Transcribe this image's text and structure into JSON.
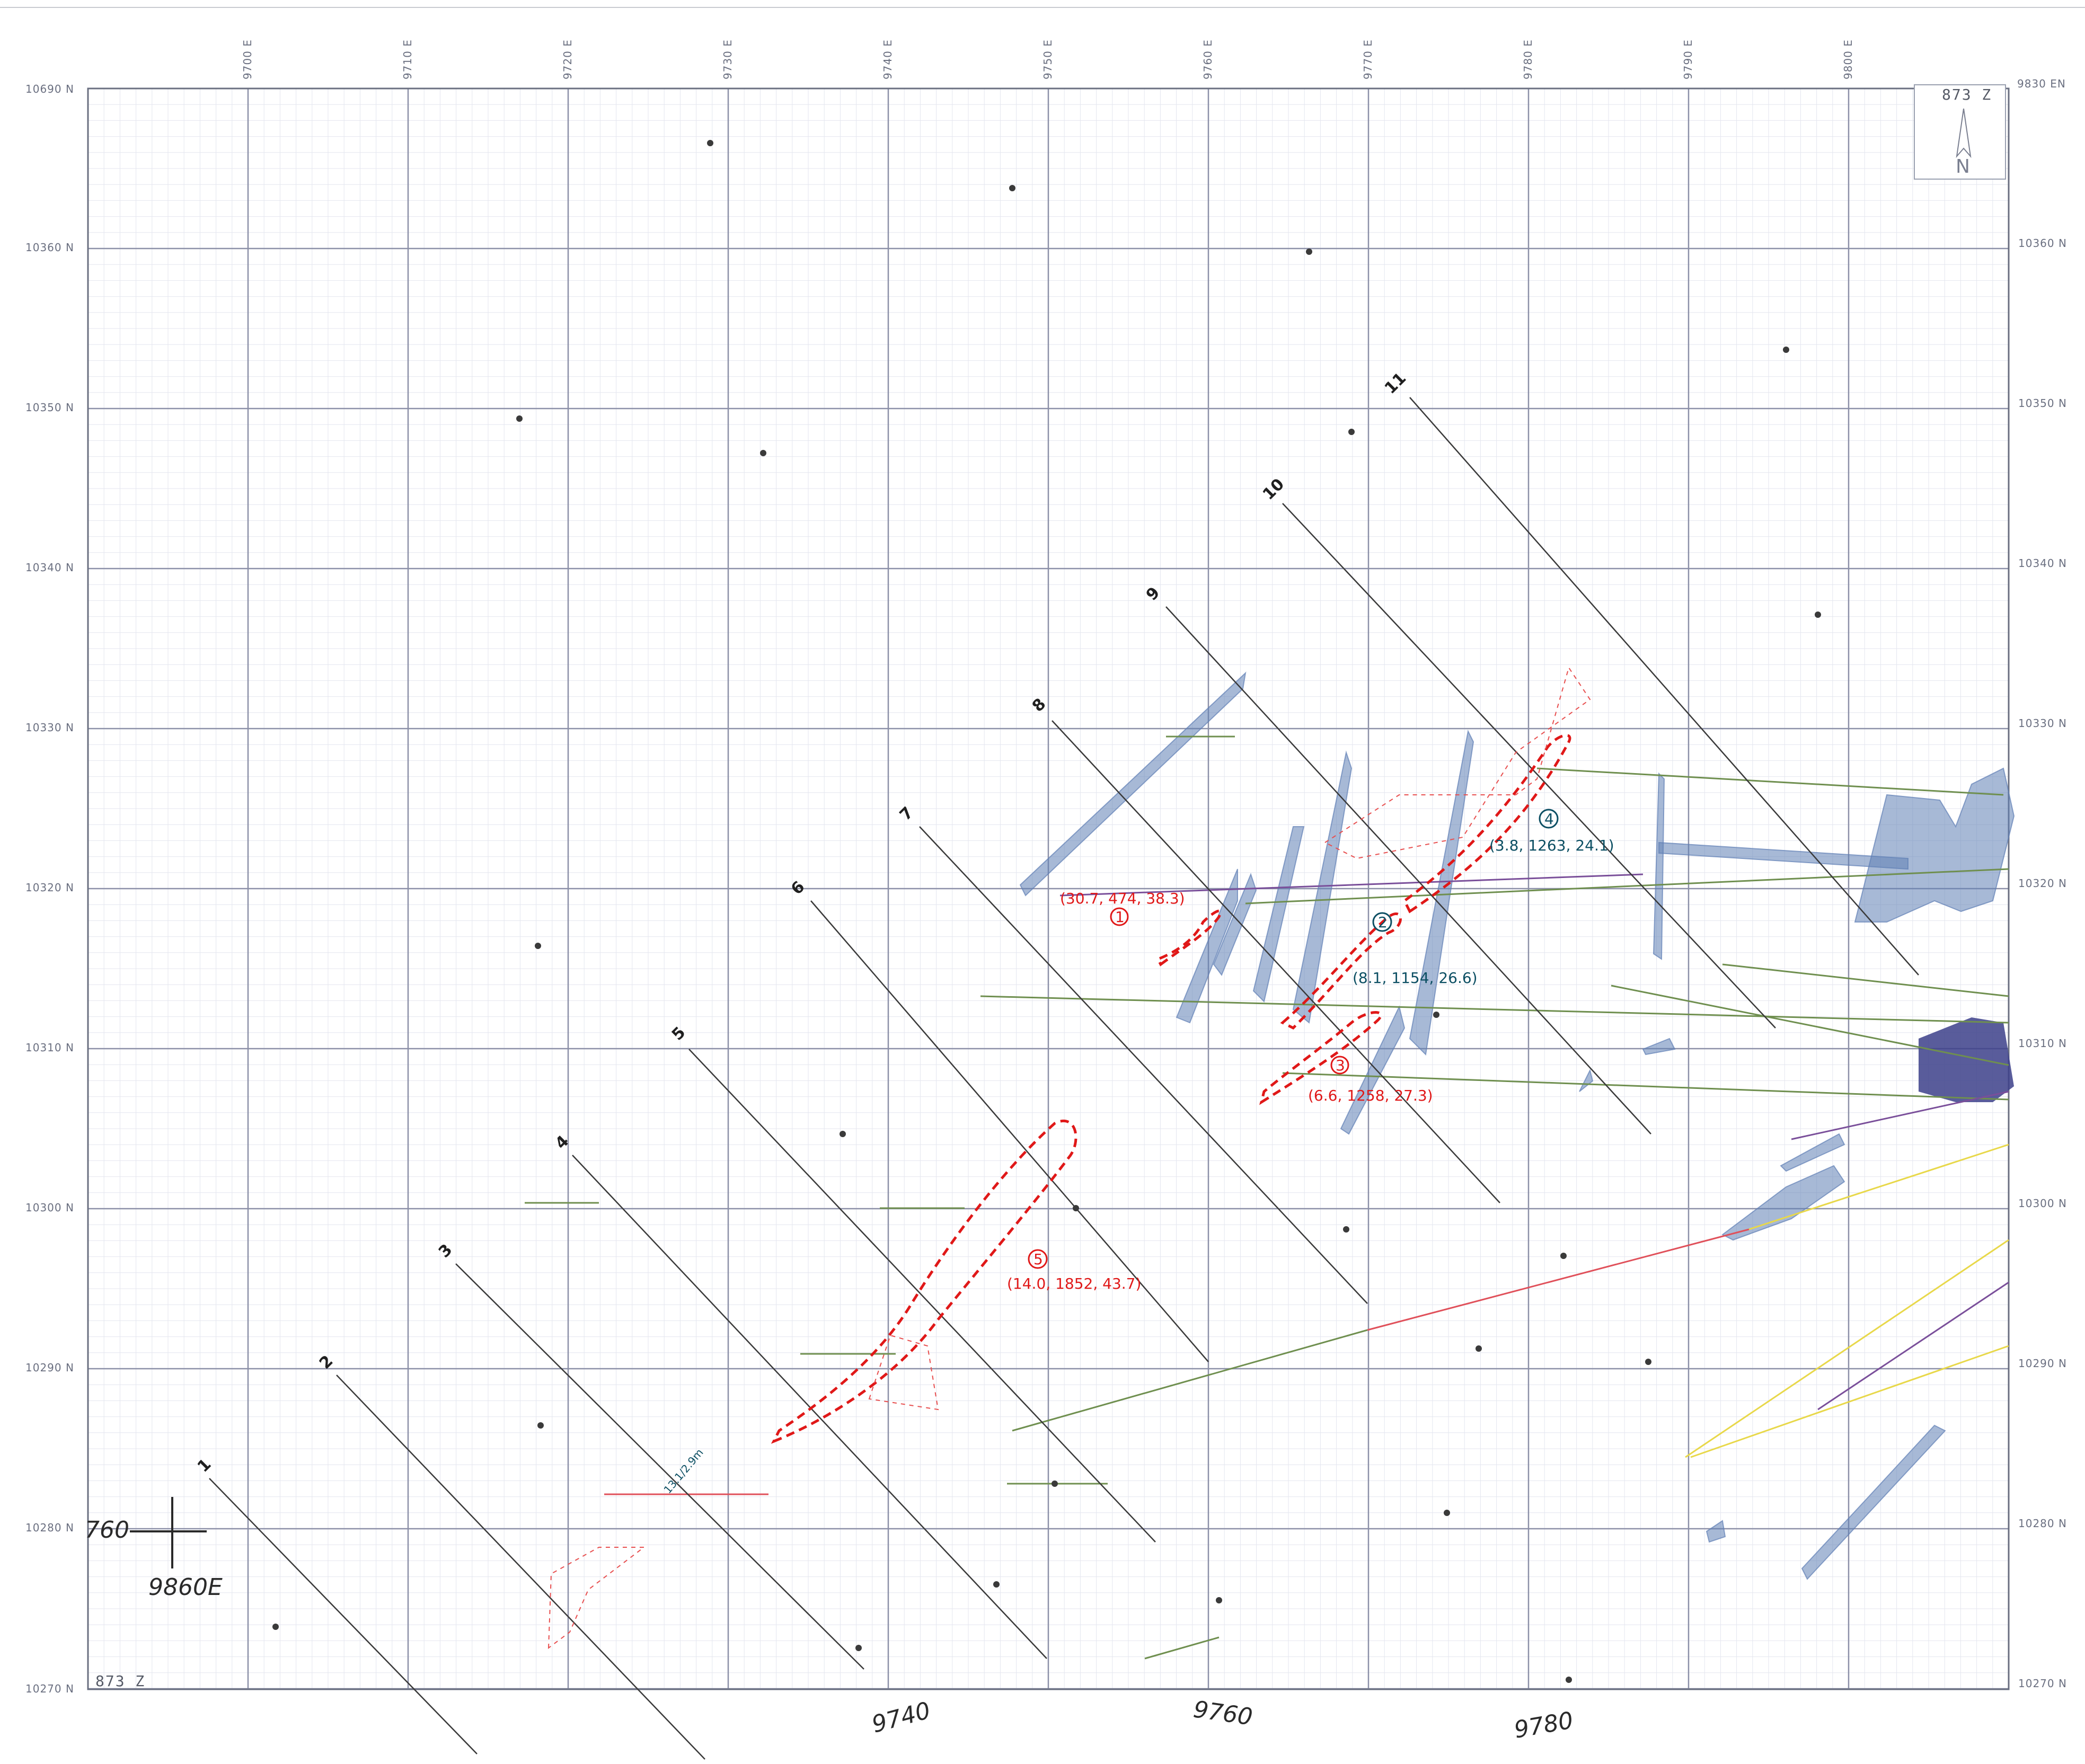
{
  "map": {
    "level_label_bottom": "873 Z",
    "level_label_top": "873 Z",
    "north_arrow_letter": "N",
    "corner_top_left": "10690 N",
    "corner_top_right": "9830 EN",
    "easting_labels": [
      "9700 E",
      "9710 E",
      "9720 E",
      "9730 E",
      "9740 E",
      "9750 E",
      "9760 E",
      "9770 E",
      "9780 E",
      "9790 E",
      "9800 E"
    ],
    "northing_labels_left": [
      "10360 N",
      "10350 N",
      "10340 N",
      "10330 N",
      "10320 N",
      "10310 N",
      "10300 N",
      "10290 N",
      "10280 N",
      "10270 N"
    ],
    "northing_labels_right": [
      "10360 N",
      "10350 N",
      "10340 N",
      "10330 N",
      "10320 N",
      "10310 N",
      "10300 N",
      "10290 N",
      "10280 N",
      "10270 N"
    ],
    "section_numbers": [
      "1",
      "2",
      "3",
      "4",
      "5",
      "6",
      "7",
      "8",
      "9",
      "10",
      "11"
    ],
    "handwritten_eastings": [
      "9740",
      "9760",
      "9780"
    ],
    "handwritten_cross_n": "760",
    "handwritten_cross_e": "9860E",
    "drill_note": "13.1/2.9m",
    "zones": [
      {
        "id": "1",
        "values": "(30.7, 474, 38.3)",
        "color": "#e01818"
      },
      {
        "id": "2",
        "values": "(8.1, 1154, 26.6)",
        "color": "#0c4f63"
      },
      {
        "id": "3",
        "values": "(6.6, 1258, 27.3)",
        "color": "#e01818"
      },
      {
        "id": "4",
        "values": "(3.8, 1263, 24.1)",
        "color": "#0c4f63"
      },
      {
        "id": "5",
        "values": "(14.0, 1852, 43.7)",
        "color": "#e01818"
      }
    ],
    "colors": {
      "grid": "#8c90a8",
      "section_line": "#3a3a3a",
      "ore_blue": "#5f7fb5",
      "ore_dark": "#3c3f8a",
      "zone_red": "#e01818",
      "drill_green": "#6f8f4f",
      "drill_red": "#e0505a",
      "drill_yellow": "#e8d84a",
      "drill_purple": "#7a4f9a"
    }
  }
}
